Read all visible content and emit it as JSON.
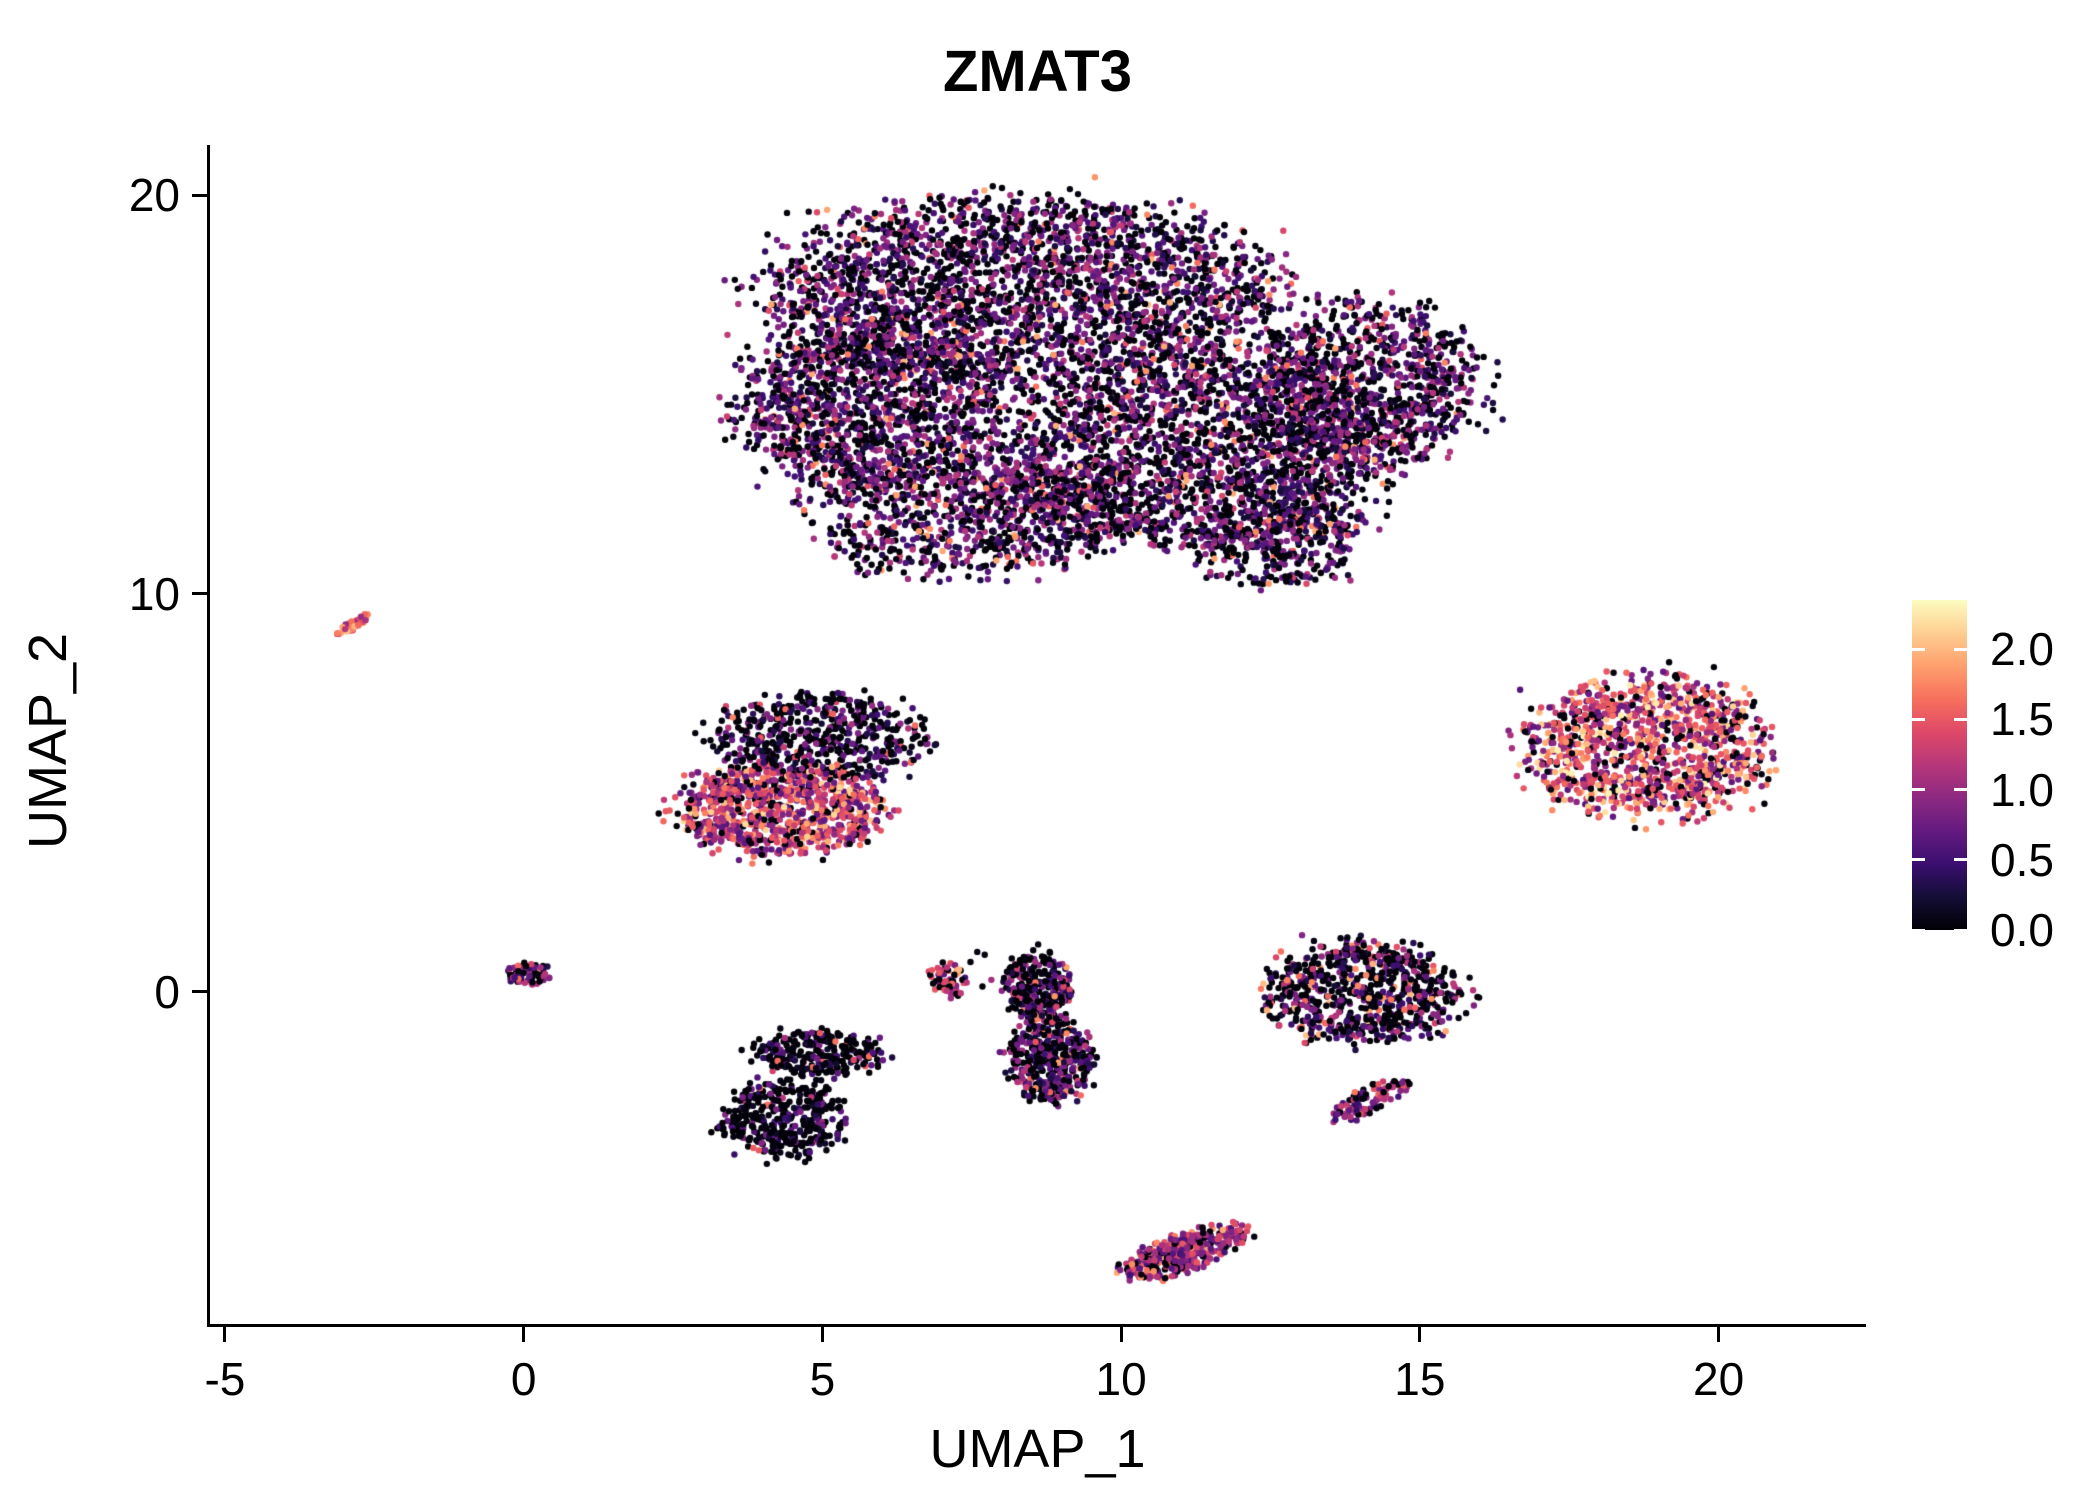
{
  "chart_data": {
    "type": "scatter",
    "title": "ZMAT3",
    "xlabel": "UMAP_1",
    "ylabel": "UMAP_2",
    "xlim": [
      -5.25,
      22.45
    ],
    "ylim": [
      -8.36,
      21.26
    ],
    "x_ticks": [
      "-5",
      "0",
      "5",
      "10",
      "15",
      "20"
    ],
    "x_tick_values": [
      -5,
      0,
      5,
      10,
      15,
      20
    ],
    "y_ticks": [
      "0",
      "10",
      "20"
    ],
    "y_tick_values": [
      0,
      10,
      20
    ],
    "grid": false,
    "legend": {
      "position": "right",
      "tick_labels": [
        "2.0",
        "1.5",
        "1.0",
        "0.5",
        "0.0"
      ],
      "tick_values": [
        2.0,
        1.5,
        1.0,
        0.5,
        0.0
      ],
      "range": [
        0,
        2.35
      ]
    },
    "colormap": {
      "name": "magma",
      "stops": [
        {
          "t": 0.0,
          "c": "#000004"
        },
        {
          "t": 0.1,
          "c": "#140e36"
        },
        {
          "t": 0.2,
          "c": "#3b0f70"
        },
        {
          "t": 0.3,
          "c": "#641a80"
        },
        {
          "t": 0.4,
          "c": "#8c2981"
        },
        {
          "t": 0.5,
          "c": "#b73779"
        },
        {
          "t": 0.6,
          "c": "#de4968"
        },
        {
          "t": 0.7,
          "c": "#f7705c"
        },
        {
          "t": 0.8,
          "c": "#fe9f6d"
        },
        {
          "t": 0.9,
          "c": "#fece91"
        },
        {
          "t": 1.0,
          "c": "#fcfdbf"
        }
      ]
    },
    "point_radius_px": 3.2,
    "seed": 42,
    "clusters": [
      {
        "name": "main-upper-blob",
        "expr": {
          "p0": 0.42,
          "mid": [
            0.2,
            1.2
          ],
          "p_hot": 0.06,
          "hot": [
            1.2,
            2.0
          ]
        },
        "blobs": [
          {
            "cx": 8.3,
            "cy": 17.6,
            "rx": 4.2,
            "ry": 2.3,
            "rot": 0,
            "n": 2600
          },
          {
            "cx": 5.9,
            "cy": 14.6,
            "rx": 2.3,
            "ry": 2.1,
            "rot": 0,
            "n": 1400
          },
          {
            "cx": 11.3,
            "cy": 13.6,
            "rx": 3.2,
            "ry": 2.4,
            "rot": 0,
            "n": 2100
          },
          {
            "cx": 14.1,
            "cy": 15.2,
            "rx": 1.9,
            "ry": 2.1,
            "rot": 0,
            "n": 1000
          },
          {
            "cx": 7.3,
            "cy": 11.9,
            "rx": 2.5,
            "ry": 1.5,
            "rot": 0,
            "n": 650
          },
          {
            "cx": 12.6,
            "cy": 11.3,
            "rx": 1.4,
            "ry": 1.2,
            "rot": 0,
            "n": 350
          },
          {
            "cx": 9.0,
            "cy": 12.2,
            "rx": 1.7,
            "ry": 1.1,
            "rot": 0,
            "n": 260
          }
        ]
      },
      {
        "name": "far-left-streak",
        "expr": {
          "p0": 0.05,
          "mid": [
            1.0,
            1.8
          ],
          "p_hot": 0.3,
          "hot": [
            1.6,
            2.1
          ]
        },
        "blobs": [
          {
            "cx": -2.88,
            "cy": 9.2,
            "rx": 0.38,
            "ry": 0.1,
            "rot": 45,
            "n": 45
          }
        ]
      },
      {
        "name": "mid-left-top",
        "expr": {
          "p0": 0.55,
          "mid": [
            0.2,
            1.0
          ],
          "p_hot": 0.05,
          "hot": [
            1.0,
            1.8
          ]
        },
        "blobs": [
          {
            "cx": 4.9,
            "cy": 6.4,
            "rx": 1.9,
            "ry": 1.05,
            "rot": 0,
            "n": 550
          }
        ]
      },
      {
        "name": "mid-left-bottom",
        "expr": {
          "p0": 0.15,
          "mid": [
            0.6,
            1.6
          ],
          "p_hot": 0.25,
          "hot": [
            1.4,
            2.2
          ]
        },
        "blobs": [
          {
            "cx": 4.3,
            "cy": 4.6,
            "rx": 1.7,
            "ry": 1.15,
            "rot": 0,
            "n": 950
          }
        ]
      },
      {
        "name": "right-cluster",
        "expr": {
          "p0": 0.18,
          "mid": [
            0.6,
            1.6
          ],
          "p_hot": 0.3,
          "hot": [
            1.4,
            2.3
          ]
        },
        "blobs": [
          {
            "cx": 18.8,
            "cy": 6.1,
            "rx": 2.0,
            "ry": 1.75,
            "rot": 0,
            "n": 1150
          }
        ]
      },
      {
        "name": "tiny-origin-cluster",
        "expr": {
          "p0": 0.3,
          "mid": [
            0.3,
            1.2
          ],
          "p_hot": 0.08,
          "hot": [
            1.3,
            1.9
          ]
        },
        "blobs": [
          {
            "cx": 0.05,
            "cy": 0.45,
            "rx": 0.4,
            "ry": 0.28,
            "rot": 0,
            "n": 70
          }
        ]
      },
      {
        "name": "lower-left-cluster",
        "expr": {
          "p0": 0.72,
          "mid": [
            0.1,
            0.9
          ],
          "p_hot": 0.05,
          "hot": [
            1.0,
            1.7
          ]
        },
        "blobs": [
          {
            "cx": 4.9,
            "cy": -1.55,
            "rx": 1.15,
            "ry": 0.6,
            "rot": 0,
            "n": 280
          },
          {
            "cx": 4.35,
            "cy": -3.2,
            "rx": 1.05,
            "ry": 0.95,
            "rot": 0,
            "n": 380
          }
        ]
      },
      {
        "name": "small-mid-cluster",
        "expr": {
          "p0": 0.35,
          "mid": [
            0.5,
            1.5
          ],
          "p_hot": 0.15,
          "hot": [
            1.4,
            2.0
          ]
        },
        "blobs": [
          {
            "cx": 7.1,
            "cy": 0.35,
            "rx": 0.32,
            "ry": 0.5,
            "rot": 0,
            "n": 55
          },
          {
            "cx": 7.6,
            "cy": 0.55,
            "rx": 0.45,
            "ry": 0.45,
            "rot": 0,
            "n": 8
          }
        ]
      },
      {
        "name": "mid-vertical-cluster",
        "expr": {
          "p0": 0.5,
          "mid": [
            0.2,
            1.2
          ],
          "p_hot": 0.08,
          "hot": [
            1.2,
            1.9
          ]
        },
        "blobs": [
          {
            "cx": 8.6,
            "cy": 0.15,
            "rx": 0.55,
            "ry": 0.85,
            "rot": 0,
            "n": 300
          },
          {
            "cx": 8.8,
            "cy": -1.7,
            "rx": 0.7,
            "ry": 1.05,
            "rot": 0,
            "n": 380
          }
        ]
      },
      {
        "name": "mid-right-cluster",
        "expr": {
          "p0": 0.55,
          "mid": [
            0.2,
            1.2
          ],
          "p_hot": 0.1,
          "hot": [
            1.3,
            2.1
          ]
        },
        "blobs": [
          {
            "cx": 14.0,
            "cy": -0.05,
            "rx": 1.7,
            "ry": 1.25,
            "rot": 0,
            "n": 750
          }
        ]
      },
      {
        "name": "hook-cluster",
        "expr": {
          "p0": 0.25,
          "mid": [
            0.4,
            1.3
          ],
          "p_hot": 0.1,
          "hot": [
            1.3,
            1.8
          ]
        },
        "blobs": [
          {
            "cx": 14.15,
            "cy": -2.7,
            "rx": 0.8,
            "ry": 0.3,
            "rot": 38,
            "n": 100
          }
        ]
      },
      {
        "name": "bottom-cluster",
        "expr": {
          "p0": 0.2,
          "mid": [
            0.5,
            1.5
          ],
          "p_hot": 0.12,
          "hot": [
            1.4,
            2.0
          ]
        },
        "blobs": [
          {
            "cx": 11.05,
            "cy": -6.55,
            "rx": 1.1,
            "ry": 0.45,
            "rot": 30,
            "n": 380
          }
        ]
      }
    ]
  },
  "colors": {
    "background": "#ffffff",
    "axis": "#000000",
    "text": "#000000"
  }
}
